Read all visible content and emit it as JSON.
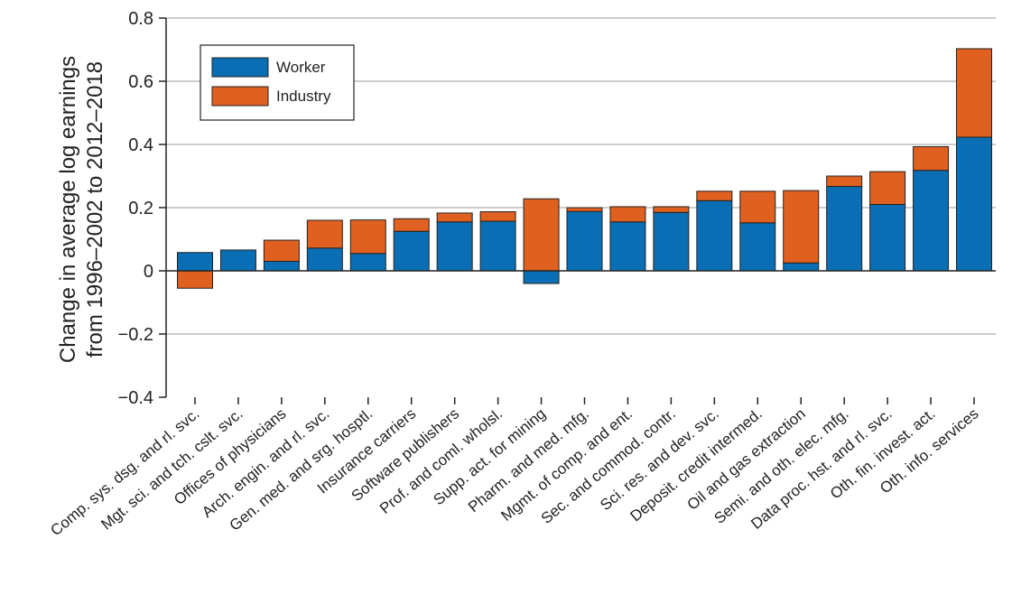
{
  "chart_data": {
    "type": "bar",
    "stacked": true,
    "ylabel_lines": [
      "Change in average log earnings",
      "from 1996–2002 to 2012–2018"
    ],
    "xlabel": "",
    "ylim": [
      -0.4,
      0.8
    ],
    "yticks": [
      {
        "value": -0.4,
        "label": "−0.4"
      },
      {
        "value": -0.2,
        "label": "−0.2"
      },
      {
        "value": 0,
        "label": "0"
      },
      {
        "value": 0.2,
        "label": "0.2"
      },
      {
        "value": 0.4,
        "label": "0.4"
      },
      {
        "value": 0.6,
        "label": "0.6"
      },
      {
        "value": 0.8,
        "label": "0.8"
      }
    ],
    "grid": "horizontal",
    "legend_position": "top-left",
    "categories": [
      "Comp. sys. dsg. and rl. svc.",
      "Mgt. sci. and tch. cslt. svc.",
      "Offices of physicians",
      "Arch. engin. and rl. svc.",
      "Gen. med. and srg. hosptl.",
      "Insurance carriers",
      "Software publishers",
      "Prof. and coml. wholsl.",
      "Supp. act. for mining",
      "Pharm. and med. mfg.",
      "Mgmt. of comp. and ent.",
      "Sec. and commod. contr.",
      "Sci. res. and dev. svc.",
      "Deposit. credit intermed.",
      "Oil and gas extraction",
      "Semi. and oth. elec. mfg.",
      "Data proc. hst. and rl. svc.",
      "Oth. fin. invest. act.",
      "Oth. info. services"
    ],
    "series": [
      {
        "name": "Worker",
        "color": "#0a6eb4",
        "values": [
          0.058,
          0.066,
          0.03,
          0.072,
          0.055,
          0.125,
          0.155,
          0.157,
          -0.04,
          0.188,
          0.155,
          0.185,
          0.222,
          0.152,
          0.025,
          0.267,
          0.21,
          0.318,
          0.423
        ]
      },
      {
        "name": "Industry",
        "color": "#e06020",
        "values": [
          -0.055,
          0.0,
          0.067,
          0.088,
          0.106,
          0.04,
          0.028,
          0.03,
          0.228,
          0.012,
          0.048,
          0.018,
          0.03,
          0.1,
          0.229,
          0.033,
          0.104,
          0.075,
          0.28
        ]
      }
    ]
  }
}
